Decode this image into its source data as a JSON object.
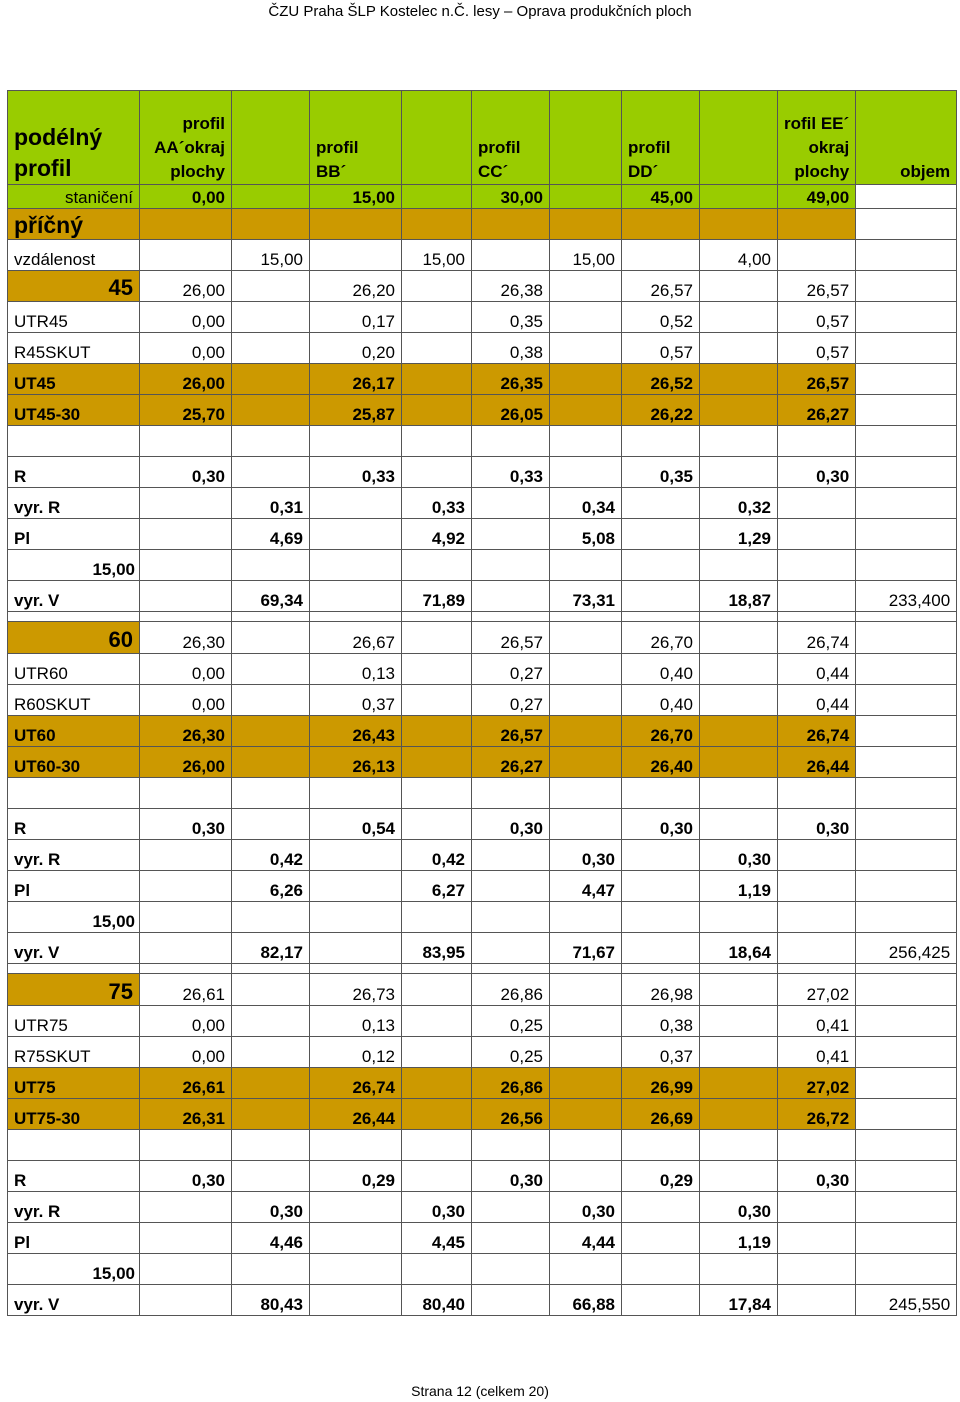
{
  "page": {
    "header_title": "ČZU Praha ŠLP Kostelec n.Č. lesy – Oprava produkčních ploch",
    "footer": "Strana 12 (celkem 20)"
  },
  "table": {
    "header": {
      "label_line1": "podélný",
      "label_line2": "profil",
      "col1": [
        "profil",
        "AA´okraj",
        "plochy"
      ],
      "col3": [
        "profil",
        "BB´"
      ],
      "col5": [
        "profil",
        "CC´"
      ],
      "col7": [
        "profil",
        "DD´"
      ],
      "col9": [
        "rofil EE´",
        "okraj",
        "plochy"
      ],
      "objem": "objem"
    },
    "staniceni": {
      "label": "staničení",
      "values": [
        "0,00",
        "15,00",
        "30,00",
        "45,00",
        "49,00"
      ]
    },
    "pricny": "příčný",
    "vzdalenost": {
      "label": "vzdálenost",
      "values": [
        "15,00",
        "15,00",
        "15,00",
        "4,00"
      ]
    },
    "sections": [
      {
        "number": "45",
        "base": [
          "26,00",
          "26,20",
          "26,38",
          "26,57",
          "26,57"
        ],
        "rows": [
          {
            "label": "UTR45",
            "values": [
              "0,00",
              "0,17",
              "0,35",
              "0,52",
              "0,57"
            ]
          },
          {
            "label": "R45SKUT",
            "values": [
              "0,00",
              "0,20",
              "0,38",
              "0,57",
              "0,57"
            ]
          },
          {
            "label": "UT45",
            "values": [
              "26,00",
              "26,17",
              "26,35",
              "26,52",
              "26,57"
            ]
          },
          {
            "label": "UT45-30",
            "values": [
              "25,70",
              "25,87",
              "26,05",
              "26,22",
              "26,27"
            ]
          }
        ],
        "R": {
          "label": "R",
          "values": [
            "0,30",
            "0,33",
            "0,33",
            "0,35",
            "0,30"
          ]
        },
        "vyrR": {
          "label": "vyr. R",
          "values": [
            "0,31",
            "0,33",
            "0,34",
            "0,32"
          ]
        },
        "Pl": {
          "label": "Pl",
          "values": [
            "4,69",
            "4,92",
            "5,08",
            "1,29"
          ]
        },
        "distance": "15,00",
        "vyrV": {
          "label": "vyr. V",
          "values": [
            "69,34",
            "71,89",
            "73,31",
            "18,87"
          ],
          "objem": "233,400"
        }
      },
      {
        "number": "60",
        "base": [
          "26,30",
          "26,67",
          "26,57",
          "26,70",
          "26,74"
        ],
        "rows": [
          {
            "label": "UTR60",
            "values": [
              "0,00",
              "0,13",
              "0,27",
              "0,40",
              "0,44"
            ]
          },
          {
            "label": "R60SKUT",
            "values": [
              "0,00",
              "0,37",
              "0,27",
              "0,40",
              "0,44"
            ]
          },
          {
            "label": "UT60",
            "values": [
              "26,30",
              "26,43",
              "26,57",
              "26,70",
              "26,74"
            ]
          },
          {
            "label": "UT60-30",
            "values": [
              "26,00",
              "26,13",
              "26,27",
              "26,40",
              "26,44"
            ]
          }
        ],
        "R": {
          "label": "R",
          "values": [
            "0,30",
            "0,54",
            "0,30",
            "0,30",
            "0,30"
          ]
        },
        "vyrR": {
          "label": "vyr. R",
          "values": [
            "0,42",
            "0,42",
            "0,30",
            "0,30"
          ]
        },
        "Pl": {
          "label": "Pl",
          "values": [
            "6,26",
            "6,27",
            "4,47",
            "1,19"
          ]
        },
        "distance": "15,00",
        "vyrV": {
          "label": "vyr. V",
          "values": [
            "82,17",
            "83,95",
            "71,67",
            "18,64"
          ],
          "objem": "256,425"
        }
      },
      {
        "number": "75",
        "base": [
          "26,61",
          "26,73",
          "26,86",
          "26,98",
          "27,02"
        ],
        "rows": [
          {
            "label": "UTR75",
            "values": [
              "0,00",
              "0,13",
              "0,25",
              "0,38",
              "0,41"
            ]
          },
          {
            "label": "R75SKUT",
            "values": [
              "0,00",
              "0,12",
              "0,25",
              "0,37",
              "0,41"
            ]
          },
          {
            "label": "UT75",
            "values": [
              "26,61",
              "26,74",
              "26,86",
              "26,99",
              "27,02"
            ]
          },
          {
            "label": "UT75-30",
            "values": [
              "26,31",
              "26,44",
              "26,56",
              "26,69",
              "26,72"
            ]
          }
        ],
        "R": {
          "label": "R",
          "values": [
            "0,30",
            "0,29",
            "0,30",
            "0,29",
            "0,30"
          ]
        },
        "vyrR": {
          "label": "vyr. R",
          "values": [
            "0,30",
            "0,30",
            "0,30",
            "0,30"
          ]
        },
        "Pl": {
          "label": "Pl",
          "values": [
            "4,46",
            "4,45",
            "4,44",
            "1,19"
          ]
        },
        "distance": "15,00",
        "vyrV": {
          "label": "vyr. V",
          "values": [
            "80,43",
            "80,40",
            "66,88",
            "17,84"
          ],
          "objem": "245,550"
        }
      }
    ]
  }
}
